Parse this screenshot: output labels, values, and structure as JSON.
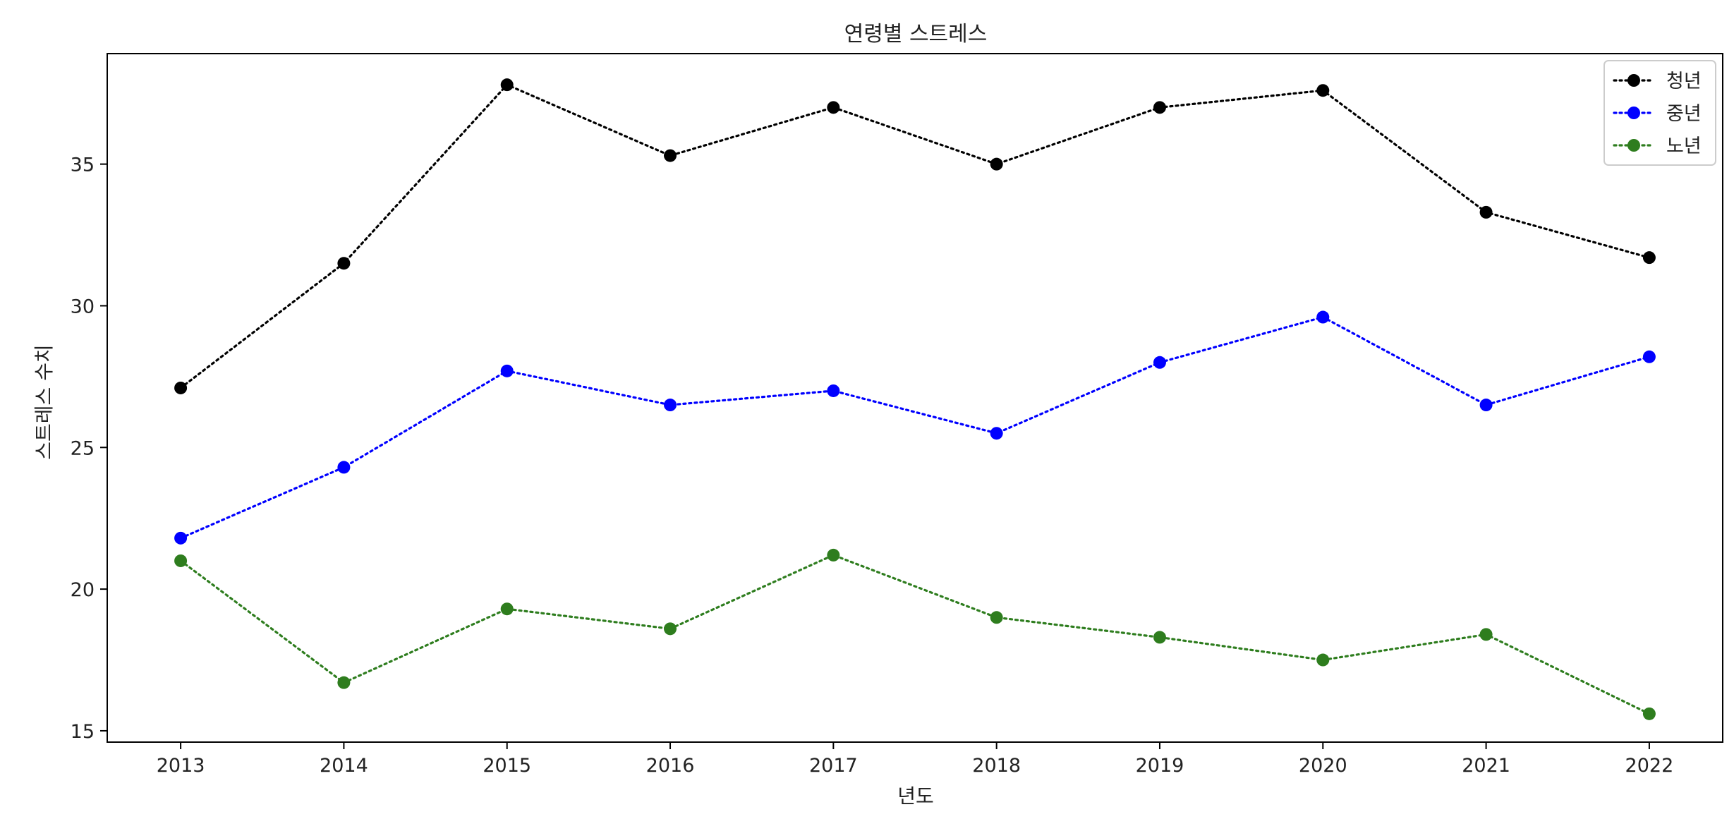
{
  "chart_data": {
    "type": "line",
    "title": "연령별 스트레스",
    "xlabel": "년도",
    "ylabel": "스트레스 수치",
    "x": [
      2013,
      2014,
      2015,
      2016,
      2017,
      2018,
      2019,
      2020,
      2021,
      2022
    ],
    "x_ticks": [
      "2013",
      "2014",
      "2015",
      "2016",
      "2017",
      "2018",
      "2019",
      "2020",
      "2021",
      "2022"
    ],
    "y_ticks": [
      "15",
      "20",
      "25",
      "30",
      "35"
    ],
    "xlim": [
      2012.55,
      2022.45
    ],
    "ylim": [
      14.6,
      38.9
    ],
    "grid": false,
    "legend_position": "top-right",
    "line_style": "dotted",
    "marker": "circle",
    "series": [
      {
        "name": "청년",
        "color": "#000000",
        "values": [
          27.1,
          31.5,
          37.8,
          35.3,
          37.0,
          35.0,
          37.0,
          37.6,
          33.3,
          31.7
        ]
      },
      {
        "name": "중년",
        "color": "#0000ff",
        "values": [
          21.8,
          24.3,
          27.7,
          26.5,
          27.0,
          25.5,
          28.0,
          29.6,
          26.5,
          28.2
        ]
      },
      {
        "name": "노년",
        "color": "#2e7d1e",
        "values": [
          21.0,
          16.7,
          19.3,
          18.6,
          21.2,
          19.0,
          18.3,
          17.5,
          18.4,
          15.6
        ]
      }
    ]
  }
}
